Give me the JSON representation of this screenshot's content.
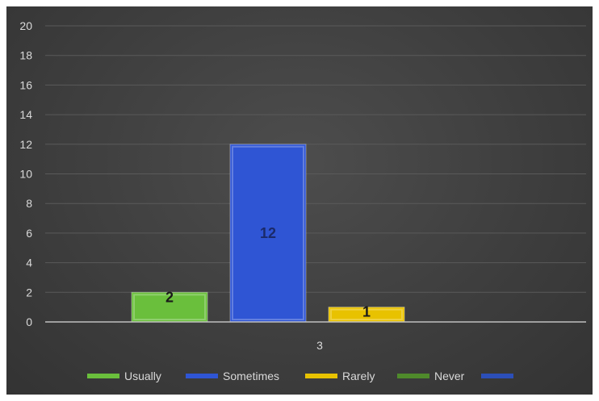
{
  "chart_data": {
    "type": "bar",
    "categories": [
      "3"
    ],
    "series": [
      {
        "name": "Usually",
        "values": [
          2
        ],
        "color": "#6abf3c",
        "label_color": "#1a1a1a"
      },
      {
        "name": "Sometimes",
        "values": [
          12
        ],
        "color": "#2f55d4",
        "label_color": "#1a2a6a"
      },
      {
        "name": "Rarely",
        "values": [
          1
        ],
        "color": "#e8c200",
        "label_color": "#1a1a1a"
      },
      {
        "name": "Never",
        "values": [
          0
        ],
        "color": "#4f8a2b",
        "label_color": "#1a1a1a"
      },
      {
        "name": "",
        "values": [
          0
        ],
        "color": "#2c4fb8",
        "label_color": "#1a1a1a"
      }
    ],
    "data_labels": [
      "2",
      "12",
      "1"
    ],
    "ylim": [
      0,
      20
    ],
    "yticks": [
      0,
      2,
      4,
      6,
      8,
      10,
      12,
      14,
      16,
      18,
      20
    ],
    "grid": true,
    "legend_position": "bottom",
    "background": "#3f3f3f"
  }
}
